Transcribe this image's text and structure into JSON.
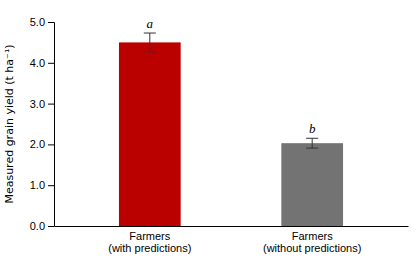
{
  "chart_data": {
    "type": "bar",
    "categories": [
      "Farmers\n(with predictions)",
      "Farmers\n(without predictions)"
    ],
    "values": [
      4.5,
      2.03
    ],
    "errors": [
      0.23,
      0.12
    ],
    "colors": [
      "#bb0000",
      "#737373"
    ],
    "ylabel": "Measured grain yield (t ha⁻¹)",
    "ylim": [
      0.0,
      5.0
    ],
    "yticks": [
      {
        "value": 0.0,
        "label": "0.0"
      },
      {
        "value": 1.0,
        "label": "1.0"
      },
      {
        "value": 2.0,
        "label": "2.0"
      },
      {
        "value": 3.0,
        "label": "3.0"
      },
      {
        "value": 4.0,
        "label": "4.0"
      },
      {
        "value": 5.0,
        "label": "5.0"
      }
    ],
    "annotations": [
      "a",
      "b"
    ],
    "grid": false
  }
}
